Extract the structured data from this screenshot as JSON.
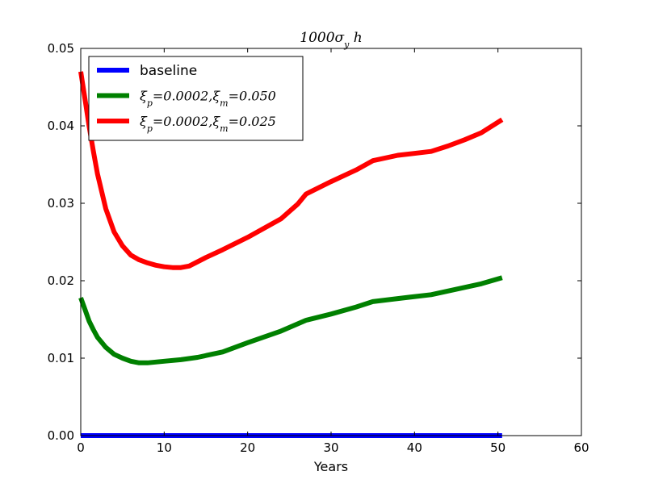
{
  "chart_data": {
    "type": "line",
    "title": "1000σ_y h",
    "xlabel": "Years",
    "ylabel": "",
    "xlim": [
      0,
      60
    ],
    "ylim": [
      0,
      0.05
    ],
    "xticks": [
      "0",
      "10",
      "20",
      "30",
      "40",
      "50",
      "60"
    ],
    "yticks": [
      "0.00",
      "0.01",
      "0.02",
      "0.03",
      "0.04",
      "0.05"
    ],
    "grid": false,
    "legend_position": "top-left",
    "series": [
      {
        "name": "baseline",
        "color": "#0000ff",
        "x": [
          0,
          10,
          20,
          30,
          40,
          50.5
        ],
        "y": [
          0,
          0,
          0,
          0,
          0,
          0
        ]
      },
      {
        "name": "ξ_p=0.0002,ξ_m=0.050",
        "color": "#008000",
        "x": [
          0,
          0.5,
          1,
          1.5,
          2,
          3,
          4,
          5,
          6,
          7,
          8,
          9,
          10,
          12,
          14,
          17,
          20,
          24,
          27,
          30,
          33,
          35,
          38,
          42,
          45,
          48,
          50.5
        ],
        "y": [
          0.0178,
          0.0163,
          0.0148,
          0.0137,
          0.0127,
          0.0114,
          0.0105,
          0.01,
          0.0096,
          0.0094,
          0.0094,
          0.0095,
          0.0096,
          0.0098,
          0.0101,
          0.0108,
          0.012,
          0.0135,
          0.0149,
          0.0157,
          0.0166,
          0.0173,
          0.0177,
          0.0182,
          0.0189,
          0.0196,
          0.0204
        ]
      },
      {
        "name": "ξ_p=0.0002,ξ_m=0.025",
        "color": "#ff0000",
        "x": [
          0,
          0.5,
          1,
          1.5,
          2,
          3,
          4,
          5,
          6,
          7,
          8,
          9,
          10,
          11,
          12,
          13,
          15,
          17,
          20,
          24,
          26,
          27,
          30,
          33,
          35,
          38,
          42,
          44,
          46,
          48,
          50.5
        ],
        "y": [
          0.047,
          0.0435,
          0.04,
          0.0368,
          0.0338,
          0.0293,
          0.0263,
          0.0245,
          0.0233,
          0.0227,
          0.0223,
          0.022,
          0.0218,
          0.0217,
          0.0217,
          0.0219,
          0.023,
          0.024,
          0.0256,
          0.028,
          0.0299,
          0.0312,
          0.0328,
          0.0343,
          0.0355,
          0.0362,
          0.0367,
          0.0374,
          0.0382,
          0.0391,
          0.0408
        ]
      }
    ]
  }
}
